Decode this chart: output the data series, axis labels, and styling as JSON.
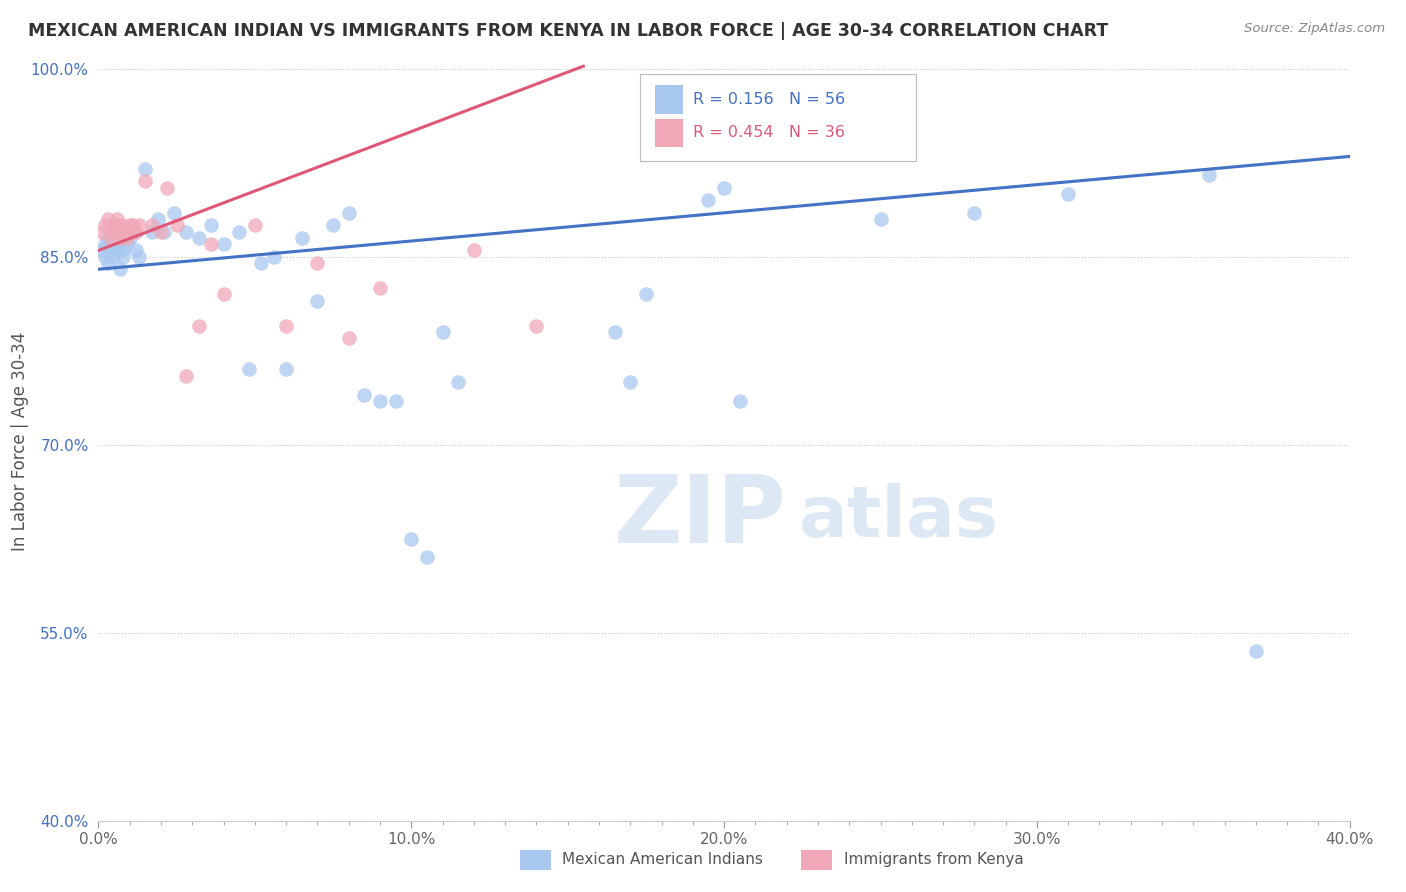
{
  "title": "MEXICAN AMERICAN INDIAN VS IMMIGRANTS FROM KENYA IN LABOR FORCE | AGE 30-34 CORRELATION CHART",
  "source": "Source: ZipAtlas.com",
  "ylabel": "In Labor Force | Age 30-34",
  "xlim": [
    0.0,
    0.4
  ],
  "ylim": [
    0.4,
    1.005
  ],
  "xtick_labels": [
    "0.0%",
    "",
    "",
    "",
    "",
    "",
    "",
    "",
    "10.0%",
    "",
    "",
    "",
    "",
    "",
    "",
    "",
    "20.0%",
    "",
    "",
    "",
    "",
    "",
    "",
    "",
    "30.0%",
    "",
    "",
    "",
    "",
    "",
    "",
    "",
    "40.0%"
  ],
  "xtick_vals": [
    0.0,
    0.0125,
    0.025,
    0.0375,
    0.05,
    0.0625,
    0.075,
    0.0875,
    0.1,
    0.1125,
    0.125,
    0.1375,
    0.15,
    0.1625,
    0.175,
    0.1875,
    0.2,
    0.2125,
    0.225,
    0.2375,
    0.25,
    0.2625,
    0.275,
    0.2875,
    0.3,
    0.3125,
    0.325,
    0.3375,
    0.35,
    0.3625,
    0.375,
    0.3875,
    0.4
  ],
  "ytick_labels": [
    "100.0%",
    "85.0%",
    "70.0%",
    "55.0%",
    "40.0%"
  ],
  "ytick_vals": [
    1.0,
    0.85,
    0.7,
    0.55,
    0.4
  ],
  "blue_color": "#a8c8f0",
  "pink_color": "#f0a8b8",
  "blue_line_color": "#4472c4",
  "pink_line_color": "#e05878",
  "blue_R": 0.156,
  "blue_N": 56,
  "pink_R": 0.454,
  "pink_N": 36,
  "legend_label_blue": "Mexican American Indians",
  "legend_label_pink": "Immigrants from Kenya",
  "watermark_zip": "ZIP",
  "watermark_atlas": "atlas",
  "blue_scatter_x": [
    0.001,
    0.002,
    0.002,
    0.003,
    0.003,
    0.004,
    0.004,
    0.005,
    0.005,
    0.006,
    0.006,
    0.007,
    0.007,
    0.008,
    0.008,
    0.009,
    0.01,
    0.011,
    0.012,
    0.013,
    0.015,
    0.017,
    0.019,
    0.021,
    0.024,
    0.028,
    0.032,
    0.036,
    0.04,
    0.045,
    0.048,
    0.052,
    0.056,
    0.06,
    0.065,
    0.07,
    0.075,
    0.08,
    0.085,
    0.09,
    0.095,
    0.1,
    0.105,
    0.11,
    0.115,
    0.165,
    0.17,
    0.175,
    0.195,
    0.2,
    0.205,
    0.25,
    0.28,
    0.31,
    0.355,
    0.37
  ],
  "blue_scatter_y": [
    0.855,
    0.86,
    0.85,
    0.865,
    0.845,
    0.86,
    0.855,
    0.85,
    0.87,
    0.855,
    0.86,
    0.84,
    0.865,
    0.855,
    0.85,
    0.86,
    0.865,
    0.87,
    0.855,
    0.85,
    0.92,
    0.87,
    0.88,
    0.87,
    0.885,
    0.87,
    0.865,
    0.875,
    0.86,
    0.87,
    0.76,
    0.845,
    0.85,
    0.76,
    0.865,
    0.815,
    0.875,
    0.885,
    0.74,
    0.735,
    0.735,
    0.625,
    0.61,
    0.79,
    0.75,
    0.79,
    0.75,
    0.82,
    0.895,
    0.905,
    0.735,
    0.88,
    0.885,
    0.9,
    0.915,
    0.535
  ],
  "pink_scatter_x": [
    0.001,
    0.002,
    0.003,
    0.004,
    0.004,
    0.005,
    0.005,
    0.006,
    0.006,
    0.007,
    0.007,
    0.008,
    0.008,
    0.009,
    0.009,
    0.01,
    0.01,
    0.011,
    0.012,
    0.013,
    0.015,
    0.017,
    0.02,
    0.022,
    0.025,
    0.028,
    0.032,
    0.036,
    0.04,
    0.05,
    0.06,
    0.07,
    0.08,
    0.09,
    0.12,
    0.14
  ],
  "pink_scatter_y": [
    0.87,
    0.875,
    0.88,
    0.87,
    0.865,
    0.875,
    0.87,
    0.875,
    0.88,
    0.87,
    0.865,
    0.87,
    0.875,
    0.87,
    0.865,
    0.875,
    0.87,
    0.875,
    0.87,
    0.875,
    0.91,
    0.875,
    0.87,
    0.905,
    0.875,
    0.755,
    0.795,
    0.86,
    0.82,
    0.875,
    0.795,
    0.845,
    0.785,
    0.825,
    0.855,
    0.795
  ],
  "blue_line_x": [
    0.0,
    0.4
  ],
  "blue_line_y": [
    0.84,
    0.93
  ],
  "pink_line_x": [
    0.0,
    0.155
  ],
  "pink_line_y": [
    0.855,
    1.002
  ]
}
